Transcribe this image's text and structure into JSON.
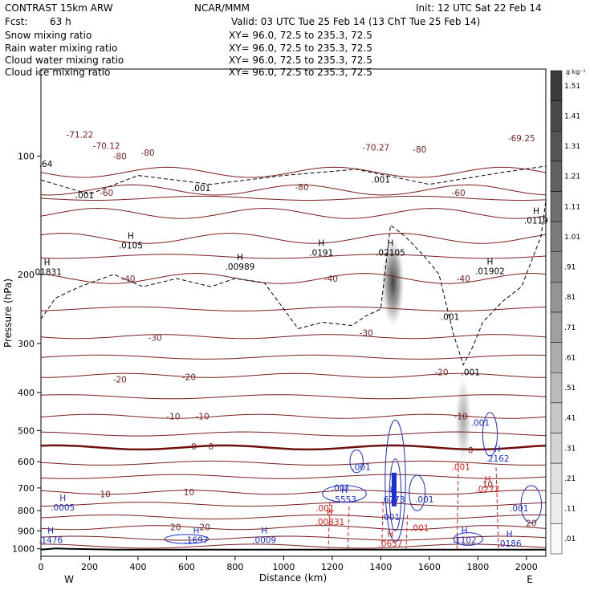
{
  "header": {
    "model": "CONTRAST 15km ARW",
    "org": "NCAR/MMM",
    "init": "Init: 12 UTC Sat 22 Feb 14",
    "fcst_label": "Fcst:",
    "fcst_value": "63 h",
    "valid": "Valid: 03 UTC Tue 25 Feb 14 (13 ChT Tue 25 Feb 14)"
  },
  "legend": [
    {
      "name": "Snow mixing ratio",
      "color": "#000000",
      "xy": "XY=  96.0, 72.5 to 235.3, 72.5"
    },
    {
      "name": "Rain water mixing ratio",
      "color": "#e0201c",
      "xy": "XY=  96.0, 72.5 to 235.3, 72.5"
    },
    {
      "name": "Cloud water mixing ratio",
      "color": "#1c2fd0",
      "xy": "XY=  96.0, 72.5 to 235.3, 72.5"
    },
    {
      "name": "Cloud ice mixing ratio",
      "color": "#000000",
      "xy": "XY=  96.0, 72.5 to 235.3, 72.5"
    }
  ],
  "colors": {
    "temperature": "#7a1f1f",
    "zero_isotherm": "#6e0f0f",
    "rain": "#e0201c",
    "cloud_water": "#1c2fd0",
    "cloud_ice": "#000000",
    "terrain": "#000000"
  },
  "chart_data": {
    "type": "contour",
    "xlabel": "Distance (km)",
    "ylabel": "Pressure (hPa)",
    "xlim": [
      0,
      2080
    ],
    "ylim": [
      1045,
      60
    ],
    "y_scale": "log",
    "x_ticks": [
      "0",
      "200",
      "400",
      "600",
      "800",
      "1000",
      "1200",
      "1400",
      "1600",
      "1800",
      "2000"
    ],
    "y_ticks": [
      "100",
      "200",
      "300",
      "400",
      "500",
      "600",
      "700",
      "800",
      "900",
      "1000"
    ],
    "x_ends": {
      "left": "W",
      "right": "E"
    },
    "colorbar": {
      "unit": "g kg⁻¹",
      "labels": [
        "1.51",
        "1.41",
        "1.31",
        "1.21",
        "1.11",
        "1.01",
        ".91",
        ".81",
        ".71",
        ".61",
        ".51",
        ".41",
        ".31",
        ".21",
        ".11",
        ".01"
      ]
    },
    "temperature_contours": [
      {
        "label": "-80",
        "p": 110
      },
      {
        "label": "-70",
        "p": 122
      },
      {
        "label": "-60",
        "p": 140
      },
      {
        "label": "-50",
        "p": 162
      },
      {
        "label": "-40",
        "p": 205
      },
      {
        "label": "-30",
        "p": 288
      },
      {
        "label": "-20",
        "p": 362
      },
      {
        "label": "-10",
        "p": 460
      },
      {
        "label": "0",
        "p": 552
      },
      {
        "label": "10",
        "p": 718
      },
      {
        "label": "20",
        "p": 883
      }
    ],
    "temperature_labels": [
      {
        "t": "-71.22",
        "x": 160,
        "p": 88
      },
      {
        "t": "-80",
        "x": 325,
        "p": 100
      },
      {
        "t": "-70.12",
        "x": 270,
        "p": 94
      },
      {
        "t": "-80",
        "x": 440,
        "p": 98
      },
      {
        "t": "-70.27",
        "x": 1380,
        "p": 95
      },
      {
        "t": "-80",
        "x": 1560,
        "p": 96
      },
      {
        "t": "-69.25",
        "x": 1980,
        "p": 90
      },
      {
        "t": "-80",
        "x": 1075,
        "p": 120
      },
      {
        "t": "-60",
        "x": 270,
        "p": 124
      },
      {
        "t": "-60",
        "x": 1720,
        "p": 124
      },
      {
        "t": "-40",
        "x": 360,
        "p": 205
      },
      {
        "t": "-40",
        "x": 1195,
        "p": 205
      },
      {
        "t": "-40",
        "x": 1740,
        "p": 205
      },
      {
        "t": "-30",
        "x": 470,
        "p": 290
      },
      {
        "t": "-30",
        "x": 1340,
        "p": 282
      },
      {
        "t": "-20",
        "x": 325,
        "p": 370
      },
      {
        "t": "-20",
        "x": 610,
        "p": 365
      },
      {
        "t": "-20",
        "x": 1650,
        "p": 355
      },
      {
        "t": "-10",
        "x": 545,
        "p": 460
      },
      {
        "t": "-10",
        "x": 665,
        "p": 460
      },
      {
        "t": "-10",
        "x": 1730,
        "p": 460
      },
      {
        "t": "0",
        "x": 630,
        "p": 548
      },
      {
        "t": "0",
        "x": 700,
        "p": 548
      },
      {
        "t": "0",
        "x": 1770,
        "p": 560
      },
      {
        "t": "10",
        "x": 265,
        "p": 725
      },
      {
        "t": "10",
        "x": 610,
        "p": 717
      },
      {
        "t": "10",
        "x": 1840,
        "p": 685
      },
      {
        "t": "20",
        "x": 555,
        "p": 880
      },
      {
        "t": "20",
        "x": 675,
        "p": 880
      },
      {
        "t": "20",
        "x": 2020,
        "p": 860
      }
    ],
    "max_labels": [
      {
        "h": "H",
        "v": ".01831",
        "x": 25,
        "p": 196,
        "color": "#000000"
      },
      {
        "h": "H",
        "v": ".0105",
        "x": 370,
        "p": 168,
        "color": "#000000"
      },
      {
        "h": "H",
        "v": ".00989",
        "x": 820,
        "p": 190,
        "color": "#000000"
      },
      {
        "h": "H",
        "v": ".0191",
        "x": 1155,
        "p": 175,
        "color": "#000000"
      },
      {
        "h": "H",
        "v": ".02105",
        "x": 1440,
        "p": 175,
        "color": "#000000"
      },
      {
        "h": "H",
        "v": ".01902",
        "x": 1850,
        "p": 195,
        "color": "#000000"
      },
      {
        "h": "H",
        "v": ".0119",
        "x": 2040,
        "p": 145,
        "color": "#000000"
      },
      {
        "h": "",
        "v": ".001",
        "x": 1400,
        "p": 114,
        "color": "#000000"
      },
      {
        "h": "",
        "v": ".001",
        "x": 660,
        "p": 120,
        "color": "#000000"
      },
      {
        "h": "",
        "v": ".001",
        "x": 180,
        "p": 125,
        "color": "#000000"
      },
      {
        "h": "",
        "v": ".001",
        "x": 1685,
        "p": 255,
        "color": "#000000"
      },
      {
        "h": "",
        "v": ".001",
        "x": 1770,
        "p": 353,
        "color": "#000000"
      },
      {
        "h": "",
        "v": ".64",
        "x": 20,
        "p": 104,
        "color": "#000000"
      },
      {
        "h": "H",
        "v": ".0005",
        "x": 90,
        "p": 780,
        "color": "#1c2fd0"
      },
      {
        "h": "H",
        "v": ".1476",
        "x": 40,
        "p": 945,
        "color": "#1c2fd0"
      },
      {
        "h": "H",
        "v": ".1697",
        "x": 640,
        "p": 945,
        "color": "#1c2fd0"
      },
      {
        "h": "H",
        "v": ".0009",
        "x": 920,
        "p": 945,
        "color": "#1c2fd0"
      },
      {
        "h": "H",
        "v": ".5553",
        "x": 1250,
        "p": 745,
        "color": "#1c2fd0"
      },
      {
        "h": "H",
        "v": ".6773",
        "x": 1450,
        "p": 745,
        "color": "#1c2fd0"
      },
      {
        "h": "H",
        "v": ".2162",
        "x": 1880,
        "p": 585,
        "color": "#1c2fd0"
      },
      {
        "h": "H",
        "v": ".1102",
        "x": 1745,
        "p": 945,
        "color": "#1c2fd0"
      },
      {
        "h": "H",
        "v": ".0186",
        "x": 1930,
        "p": 965,
        "color": "#1c2fd0"
      },
      {
        "h": "",
        "v": ".001",
        "x": 1235,
        "p": 695,
        "color": "#1c2fd0"
      },
      {
        "h": "",
        "v": ".001",
        "x": 1320,
        "p": 615,
        "color": "#1c2fd0"
      },
      {
        "h": "",
        "v": ".001",
        "x": 1580,
        "p": 745,
        "color": "#1c2fd0"
      },
      {
        "h": "",
        "v": ".001",
        "x": 1440,
        "p": 825,
        "color": "#1c2fd0"
      },
      {
        "h": "",
        "v": ".001",
        "x": 1810,
        "p": 475,
        "color": "#1c2fd0"
      },
      {
        "h": "",
        "v": ".001",
        "x": 1970,
        "p": 785,
        "color": "#1c2fd0"
      },
      {
        "h": "H",
        "v": ".00831",
        "x": 1190,
        "p": 850,
        "color": "#e0201c"
      },
      {
        "h": "H",
        "v": ".0657",
        "x": 1440,
        "p": 965,
        "color": "#e0201c"
      },
      {
        "h": "H",
        "v": ".0272",
        "x": 1840,
        "p": 700,
        "color": "#e0201c"
      },
      {
        "h": "",
        "v": ".001",
        "x": 1170,
        "p": 785,
        "color": "#e0201c"
      },
      {
        "h": "",
        "v": ".001",
        "x": 1730,
        "p": 615,
        "color": "#e0201c"
      },
      {
        "h": "",
        "v": ".001",
        "x": 1560,
        "p": 880,
        "color": "#e0201c"
      }
    ]
  }
}
